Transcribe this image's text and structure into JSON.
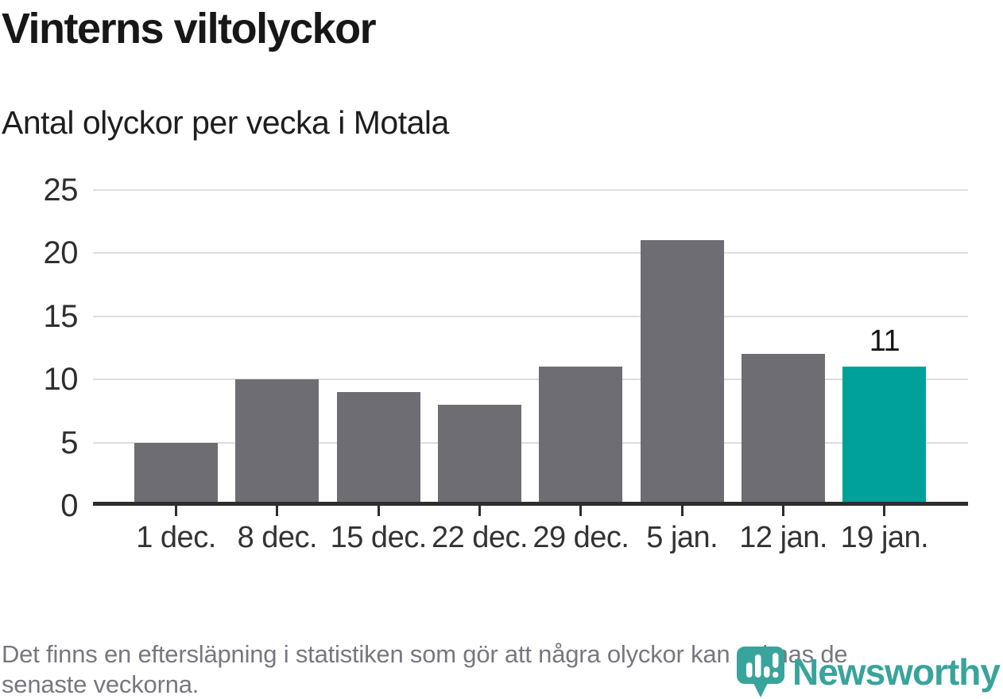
{
  "header": {
    "title": "Vinterns viltolyckor",
    "subtitle": "Antal olyckor per vecka i Motala"
  },
  "chart_data": {
    "type": "bar",
    "title": "Vinterns viltolyckor",
    "subtitle": "Antal olyckor per vecka i Motala",
    "categories": [
      "1 dec.",
      "8 dec.",
      "15 dec.",
      "22 dec.",
      "29 dec.",
      "5 jan.",
      "12 jan.",
      "19 jan."
    ],
    "values": [
      5,
      10,
      9,
      8,
      11,
      21,
      12,
      11
    ],
    "yticks": [
      0,
      5,
      10,
      15,
      20,
      25
    ],
    "ylim": [
      0,
      25
    ],
    "xlabel": "",
    "ylabel": "",
    "grid": "horizontal",
    "legend": "none",
    "highlight_index": 7,
    "value_label": {
      "index": 7,
      "text": "11"
    },
    "colors": {
      "bar": "#6E6D73",
      "highlight": "#00A19A",
      "gridline": "#DDDDDD",
      "axis": "#2D2D2D",
      "tick_label": "#333333"
    }
  },
  "footer": {
    "note_lines": [
      "Det finns en eftersläpning i statistiken som gör att några olyckor kan saknas de",
      "senaste veckorna."
    ]
  },
  "branding": {
    "name": "Newsworthy",
    "logo_color": "#38A49C",
    "logo_icon": "bar-chart-speech-bubble"
  }
}
